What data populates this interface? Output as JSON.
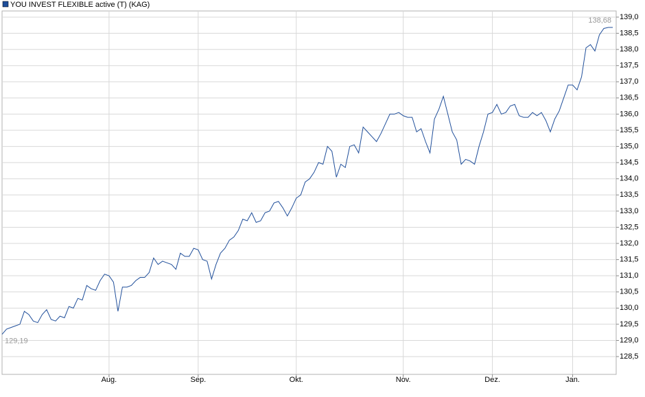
{
  "chart_data": {
    "type": "line",
    "title": "YOU INVEST FLEXIBLE active (T) (KAG)",
    "categories": [
      null,
      null,
      null,
      null,
      null,
      null,
      null,
      null,
      null,
      null,
      null,
      null,
      null,
      null,
      null,
      null,
      null,
      null,
      null,
      null,
      null,
      null,
      null,
      null,
      "Aug.",
      null,
      null,
      null,
      null,
      null,
      null,
      null,
      null,
      null,
      null,
      null,
      null,
      null,
      null,
      null,
      null,
      null,
      null,
      null,
      "Sep.",
      null,
      null,
      null,
      null,
      null,
      null,
      null,
      null,
      null,
      null,
      null,
      null,
      null,
      null,
      null,
      null,
      null,
      null,
      null,
      null,
      null,
      "Okt.",
      null,
      null,
      null,
      null,
      null,
      null,
      null,
      null,
      null,
      null,
      null,
      null,
      null,
      null,
      null,
      null,
      null,
      null,
      null,
      null,
      null,
      null,
      null,
      "Nov.",
      null,
      null,
      null,
      null,
      null,
      null,
      null,
      null,
      null,
      null,
      null,
      null,
      null,
      null,
      null,
      null,
      null,
      null,
      null,
      "Dez.",
      null,
      null,
      null,
      null,
      null,
      null,
      null,
      null,
      null,
      null,
      null,
      null,
      null,
      null,
      null,
      null,
      null,
      "Jan.",
      null,
      null,
      null,
      null,
      null,
      null,
      null,
      null,
      null
    ],
    "series": [
      {
        "name": "YOU INVEST FLEXIBLE active (T) (KAG)",
        "color": "#1f4e9a",
        "values": [
          129.19,
          129.35,
          129.4,
          129.45,
          129.5,
          129.9,
          129.8,
          129.6,
          129.55,
          129.8,
          129.95,
          129.65,
          129.6,
          129.75,
          129.7,
          130.05,
          130.0,
          130.3,
          130.25,
          130.7,
          130.6,
          130.55,
          130.85,
          131.05,
          131.0,
          130.8,
          129.9,
          130.65,
          130.65,
          130.7,
          130.85,
          130.95,
          130.95,
          131.1,
          131.55,
          131.35,
          131.45,
          131.4,
          131.35,
          131.2,
          131.7,
          131.6,
          131.6,
          131.85,
          131.8,
          131.5,
          131.45,
          130.9,
          131.35,
          131.7,
          131.85,
          132.1,
          132.2,
          132.4,
          132.75,
          132.7,
          132.95,
          132.65,
          132.7,
          132.95,
          133.0,
          133.25,
          133.3,
          133.1,
          132.85,
          133.1,
          133.4,
          133.5,
          133.9,
          134.0,
          134.2,
          134.5,
          134.45,
          135.0,
          134.85,
          134.05,
          134.45,
          134.35,
          135.0,
          135.05,
          134.8,
          135.6,
          135.45,
          135.3,
          135.15,
          135.4,
          135.7,
          136.0,
          136.0,
          136.05,
          135.95,
          135.9,
          135.9,
          135.45,
          135.55,
          135.15,
          134.8,
          135.85,
          136.15,
          136.55,
          136.0,
          135.45,
          135.2,
          134.45,
          134.6,
          134.55,
          134.45,
          135.0,
          135.45,
          136.0,
          136.05,
          136.3,
          136.0,
          136.05,
          136.25,
          136.3,
          135.95,
          135.9,
          135.9,
          136.05,
          135.95,
          136.05,
          135.8,
          135.45,
          135.85,
          136.1,
          136.5,
          136.9,
          136.9,
          136.75,
          137.15,
          138.05,
          138.15,
          137.95,
          138.45,
          138.65,
          138.68,
          138.68
        ],
        "value_labels": [
          "129,19",
          null,
          null,
          null,
          null,
          null,
          null,
          null,
          null,
          null,
          null,
          null,
          null,
          null,
          null,
          null,
          null,
          null,
          null,
          null,
          null,
          null,
          null,
          null,
          null,
          null,
          null,
          null,
          null,
          null,
          null,
          null,
          null,
          null,
          null,
          null,
          null,
          null,
          null,
          null,
          null,
          null,
          null,
          null,
          null,
          null,
          null,
          null,
          null,
          null,
          null,
          null,
          null,
          null,
          null,
          null,
          null,
          null,
          null,
          null,
          null,
          null,
          null,
          null,
          null,
          null,
          null,
          null,
          null,
          null,
          null,
          null,
          null,
          null,
          null,
          null,
          null,
          null,
          null,
          null,
          null,
          null,
          null,
          null,
          null,
          null,
          null,
          null,
          null,
          null,
          null,
          null,
          null,
          null,
          null,
          null,
          null,
          null,
          null,
          null,
          null,
          null,
          null,
          null,
          null,
          null,
          null,
          null,
          null,
          null,
          null,
          null,
          null,
          null,
          null,
          null,
          null,
          null,
          null,
          null,
          null,
          null,
          null,
          null,
          null,
          null,
          null,
          null,
          null,
          null,
          null,
          null,
          null,
          null,
          null,
          null,
          null,
          "138,68"
        ]
      }
    ],
    "ylim": [
      127.95,
      139.19
    ],
    "yticks": [
      {
        "value": 128.5,
        "label": "128,5"
      },
      {
        "value": 129.0,
        "label": "129,0"
      },
      {
        "value": 129.5,
        "label": "129,5"
      },
      {
        "value": 130.0,
        "label": "130,0"
      },
      {
        "value": 130.5,
        "label": "130,5"
      },
      {
        "value": 131.0,
        "label": "131,0"
      },
      {
        "value": 131.5,
        "label": "131,5"
      },
      {
        "value": 132.0,
        "label": "132,0"
      },
      {
        "value": 132.5,
        "label": "132,5"
      },
      {
        "value": 133.0,
        "label": "133,0"
      },
      {
        "value": 133.5,
        "label": "133,5"
      },
      {
        "value": 134.0,
        "label": "134,0"
      },
      {
        "value": 134.5,
        "label": "134,5"
      },
      {
        "value": 135.0,
        "label": "135,0"
      },
      {
        "value": 135.5,
        "label": "135,5"
      },
      {
        "value": 136.0,
        "label": "136,0"
      },
      {
        "value": 136.5,
        "label": "136,5"
      },
      {
        "value": 137.0,
        "label": "137,0"
      },
      {
        "value": 137.5,
        "label": "137,5"
      },
      {
        "value": 138.0,
        "label": "138,0"
      },
      {
        "value": 138.5,
        "label": "138,5"
      },
      {
        "value": 139.0,
        "label": "139,0"
      }
    ],
    "grid": true
  }
}
